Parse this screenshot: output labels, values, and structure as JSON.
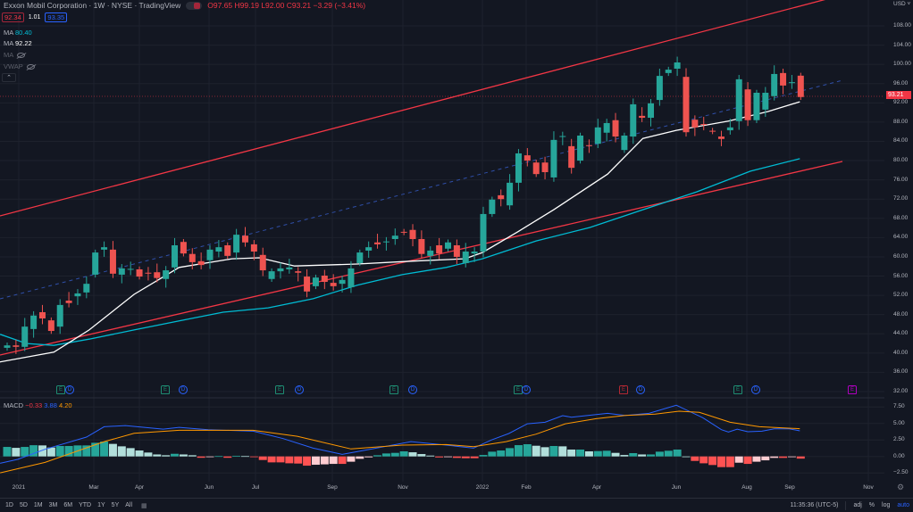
{
  "header": {
    "title": "Exxon Mobil Corporation · 1W · NYSE · TradingView",
    "ohlc": {
      "open": "O97.65",
      "high": "H99.19",
      "low": "L92.00",
      "close": "C93.21",
      "change": "−3.29 (−3.41%)"
    },
    "sell_price": "92.34",
    "spread": "1.01",
    "buy_price": "93.35"
  },
  "indicators": [
    {
      "name": "MA",
      "value": "80.40",
      "color": "#00bcd4"
    },
    {
      "name": "MA",
      "value": "92.22",
      "color": "#ffffff"
    },
    {
      "name": "MA",
      "value": "",
      "hidden": true
    },
    {
      "name": "VWAP",
      "value": "",
      "hidden": true
    }
  ],
  "macd_legend": {
    "name": "MACD",
    "hist": "−0.33",
    "macd": "3.88",
    "signal": "4.20"
  },
  "price_axis": {
    "currency": "USD",
    "ticks": [
      "108.00",
      "104.00",
      "100.00",
      "96.00",
      "92.00",
      "88.00",
      "84.00",
      "80.00",
      "76.00",
      "72.00",
      "68.00",
      "64.00",
      "60.00",
      "56.00",
      "52.00",
      "48.00",
      "44.00",
      "40.00",
      "36.00",
      "32.00"
    ],
    "last_price": "93.21"
  },
  "macd_axis": {
    "ticks": [
      "7.50",
      "5.00",
      "2.50",
      "0.00",
      "−2.50"
    ]
  },
  "time_axis": [
    "2021",
    "Mar",
    "Apr",
    "Jun",
    "Jul",
    "Sep",
    "Nov",
    "2022",
    "Feb",
    "Apr",
    "Jun",
    "Aug",
    "Sep",
    "Nov"
  ],
  "markers": {
    "earnings": "E",
    "dividend": "D"
  },
  "bottom_bar": {
    "ranges": [
      "1D",
      "5D",
      "1M",
      "3M",
      "6M",
      "YTD",
      "1Y",
      "5Y",
      "All"
    ],
    "clock": "11:35:36 (UTC-5)",
    "options": [
      "adj",
      "%",
      "log",
      "auto"
    ]
  },
  "colors": {
    "up": "#26a69a",
    "down": "#ef5350",
    "ma_fast": "#ffffff",
    "ma_slow": "#00bcd4",
    "channel": "#f23645",
    "macd": "#2962ff",
    "signal": "#ff9800"
  },
  "chart_data": {
    "type": "candlestick",
    "interval": "1W",
    "ylim": [
      32,
      108
    ],
    "candles": [
      [
        41.1,
        41.6
      ],
      [
        41.6,
        41.3
      ],
      [
        41.3,
        45.5
      ],
      [
        45.0,
        47.8
      ],
      [
        48.5,
        47.2
      ],
      [
        46.8,
        44.6
      ],
      [
        45.5,
        50.0
      ],
      [
        50.9,
        50.4
      ],
      [
        51.8,
        52.4
      ],
      [
        52.6,
        54.4
      ],
      [
        56.3,
        60.9
      ],
      [
        61.5,
        62.0
      ],
      [
        61.5,
        56.5
      ],
      [
        56.3,
        57.6
      ],
      [
        57.4,
        57.5
      ],
      [
        57.4,
        55.9
      ],
      [
        56.7,
        56.6
      ],
      [
        56.8,
        55.6
      ],
      [
        55.4,
        57.2
      ],
      [
        57.8,
        62.4
      ],
      [
        63.1,
        60.7
      ],
      [
        60.6,
        58.9
      ],
      [
        59.1,
        58.3
      ],
      [
        59.3,
        61.5
      ],
      [
        61.1,
        62.0
      ],
      [
        62.4,
        60.2
      ],
      [
        60.9,
        64.6
      ],
      [
        64.4,
        63.0
      ],
      [
        62.6,
        61.1
      ],
      [
        60.4,
        57.2
      ],
      [
        55.4,
        57.0
      ],
      [
        57.0,
        57.6
      ],
      [
        57.4,
        57.8
      ],
      [
        57.0,
        56.7
      ],
      [
        55.9,
        52.8
      ],
      [
        53.9,
        55.7
      ],
      [
        56.1,
        54.8
      ],
      [
        54.6,
        53.9
      ],
      [
        54.4,
        55.2
      ],
      [
        53.7,
        57.6
      ],
      [
        58.7,
        60.9
      ],
      [
        61.3,
        62.0
      ],
      [
        63.0,
        62.6
      ],
      [
        63.1,
        63.2
      ],
      [
        63.7,
        64.4
      ],
      [
        65.2,
        65.1
      ],
      [
        65.6,
        63.7
      ],
      [
        63.7,
        60.6
      ],
      [
        60.2,
        61.3
      ],
      [
        62.4,
        60.7
      ],
      [
        61.7,
        63.0
      ],
      [
        62.4,
        60.0
      ],
      [
        58.7,
        61.1
      ],
      [
        60.7,
        61.1
      ],
      [
        61.1,
        68.9
      ],
      [
        68.9,
        71.9
      ],
      [
        72.8,
        72.0
      ],
      [
        70.7,
        75.4
      ],
      [
        75.4,
        81.5
      ],
      [
        81.1,
        80.0
      ],
      [
        79.6,
        77.2
      ],
      [
        79.6,
        77.6
      ],
      [
        76.5,
        84.3
      ],
      [
        85.0,
        85.1
      ],
      [
        83.0,
        78.5
      ],
      [
        80.0,
        85.2
      ],
      [
        83.2,
        83.1
      ],
      [
        83.5,
        86.9
      ],
      [
        85.8,
        87.8
      ],
      [
        88.4,
        85.0
      ],
      [
        82.2,
        85.2
      ],
      [
        85.0,
        91.7
      ],
      [
        89.3,
        88.9
      ],
      [
        88.9,
        91.9
      ],
      [
        92.6,
        97.6
      ],
      [
        98.2,
        98.9
      ],
      [
        99.1,
        100.4
      ],
      [
        97.4,
        85.9
      ],
      [
        88.5,
        86.9
      ],
      [
        87.6,
        87.5
      ],
      [
        86.2,
        86.1
      ],
      [
        85.0,
        84.5
      ],
      [
        86.3,
        86.9
      ],
      [
        88.2,
        96.9
      ],
      [
        94.8,
        88.4
      ],
      [
        88.4,
        94.1
      ],
      [
        90.6,
        94.1
      ],
      [
        93.4,
        98.0
      ],
      [
        98.2,
        95.6
      ],
      [
        96.1,
        96.3
      ],
      [
        97.65,
        93.21
      ]
    ],
    "ma_fast": [
      [
        -1,
        38.1
      ],
      [
        5.3,
        40.2
      ],
      [
        9.3,
        44.8
      ],
      [
        14.4,
        52.2
      ],
      [
        19.5,
        57.8
      ],
      [
        25.5,
        59.6
      ],
      [
        28.6,
        59.8
      ],
      [
        32.6,
        58.1
      ],
      [
        39.7,
        58.5
      ],
      [
        45.8,
        59.1
      ],
      [
        51.9,
        59.6
      ],
      [
        53.9,
        60.9
      ],
      [
        57.9,
        65.2
      ],
      [
        62,
        69.8
      ],
      [
        68.1,
        77.2
      ],
      [
        72.1,
        84.6
      ],
      [
        75.9,
        86.3
      ],
      [
        81.8,
        88.2
      ],
      [
        86.3,
        90.2
      ],
      [
        89.9,
        92.22
      ]
    ],
    "ma_slow": [
      [
        -0.8,
        43.9
      ],
      [
        2.2,
        42.0
      ],
      [
        5.3,
        41.6
      ],
      [
        9.3,
        42.9
      ],
      [
        14.4,
        44.8
      ],
      [
        19.5,
        46.7
      ],
      [
        24.5,
        48.5
      ],
      [
        29.6,
        49.4
      ],
      [
        34.7,
        51.3
      ],
      [
        39.7,
        54.1
      ],
      [
        44.8,
        56.3
      ],
      [
        49.8,
        57.8
      ],
      [
        53.9,
        59.6
      ],
      [
        60,
        63.3
      ],
      [
        66.1,
        66.1
      ],
      [
        72.1,
        69.8
      ],
      [
        78.2,
        73.5
      ],
      [
        84.3,
        77.8
      ],
      [
        89.9,
        80.4
      ]
    ],
    "macd_hist": [
      1.44,
      1.3,
      1.44,
      1.7,
      1.67,
      1.35,
      1.58,
      1.58,
      1.67,
      1.67,
      2.07,
      2.25,
      1.9,
      1.53,
      1.26,
      0.9,
      0.59,
      0.3,
      0.18,
      0.4,
      0.3,
      0.18,
      -0.2,
      -0.1,
      0.05,
      -0.2,
      0.1,
      0.05,
      -0.1,
      -0.54,
      -0.9,
      -0.9,
      -1.04,
      -1.08,
      -1.4,
      -1.26,
      -1.2,
      -1.13,
      -1.13,
      -0.8,
      -0.36,
      -0.14,
      0.18,
      0.45,
      0.54,
      0.77,
      0.63,
      0.36,
      0.13,
      -0.15,
      -0.05,
      -0.22,
      -0.27,
      -0.27,
      0.22,
      0.72,
      0.9,
      1.26,
      1.71,
      1.85,
      1.62,
      1.4,
      1.58,
      1.53,
      1.04,
      1.04,
      0.77,
      0.81,
      0.86,
      0.54,
      0.22,
      0.5,
      0.3,
      0.3,
      0.72,
      0.86,
      1.04,
      0,
      -0.68,
      -1.04,
      -1.3,
      -1.62,
      -1.62,
      -0.95,
      -1.13,
      -0.8,
      -0.59,
      -0.22,
      -0.22,
      -0.1,
      -0.33
    ],
    "macd_line": [
      [
        -0.8,
        -1.04
      ],
      [
        1.2,
        -0.45
      ],
      [
        4.3,
        1.08
      ],
      [
        9,
        2.93
      ],
      [
        11,
        4.5
      ],
      [
        13.4,
        4.68
      ],
      [
        17.7,
        4.14
      ],
      [
        19.5,
        4.41
      ],
      [
        22.8,
        4.05
      ],
      [
        27.9,
        3.83
      ],
      [
        31.3,
        2.7
      ],
      [
        34.7,
        1.26
      ],
      [
        38,
        0.31
      ],
      [
        41.4,
        1.13
      ],
      [
        45.8,
        2.25
      ],
      [
        49.8,
        1.71
      ],
      [
        52.9,
        1.26
      ],
      [
        54.9,
        2.48
      ],
      [
        56.9,
        3.47
      ],
      [
        59,
        4.95
      ],
      [
        61,
        5.18
      ],
      [
        63,
        6.17
      ],
      [
        64,
        5.95
      ],
      [
        68.1,
        6.53
      ],
      [
        70.1,
        6.2
      ],
      [
        72.8,
        6.53
      ],
      [
        75.9,
        7.75
      ],
      [
        78.9,
        5.86
      ],
      [
        81,
        4.05
      ],
      [
        81.8,
        3.69
      ],
      [
        82.8,
        4.14
      ],
      [
        84,
        3.74
      ],
      [
        85.6,
        3.83
      ],
      [
        87,
        4.19
      ],
      [
        88.7,
        4.19
      ],
      [
        89.9,
        3.88
      ]
    ],
    "signal_line": [
      [
        -0.8,
        -2.48
      ],
      [
        4.3,
        -0.9
      ],
      [
        11,
        2.25
      ],
      [
        14.4,
        3.5
      ],
      [
        19.5,
        3.96
      ],
      [
        27.9,
        3.96
      ],
      [
        32.9,
        3.06
      ],
      [
        39,
        1.13
      ],
      [
        44.8,
        1.71
      ],
      [
        49.8,
        1.8
      ],
      [
        52.9,
        1.49
      ],
      [
        56.6,
        2.25
      ],
      [
        60,
        3.38
      ],
      [
        63.3,
        4.95
      ],
      [
        66.8,
        5.72
      ],
      [
        70.1,
        6.2
      ],
      [
        73.5,
        6.4
      ],
      [
        76.2,
        6.85
      ],
      [
        78.5,
        6.67
      ],
      [
        82,
        5.18
      ],
      [
        85.3,
        4.5
      ],
      [
        89.9,
        4.2
      ]
    ],
    "macd_ylim": [
      -2.5,
      7.5
    ]
  }
}
